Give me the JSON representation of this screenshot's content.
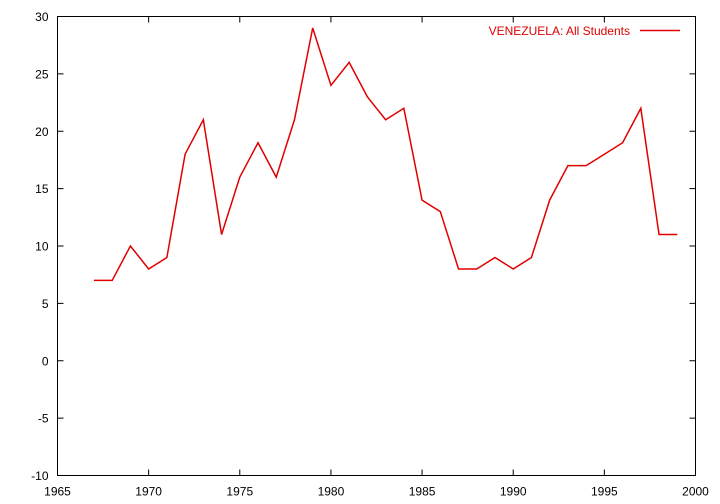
{
  "chart_data": {
    "type": "line",
    "title": "",
    "xlabel": "",
    "ylabel": "",
    "xlim": [
      1965,
      2000
    ],
    "ylim": [
      -10,
      30
    ],
    "x_ticks": [
      1965,
      1970,
      1975,
      1980,
      1985,
      1990,
      1995,
      2000
    ],
    "y_ticks": [
      -10,
      -5,
      0,
      5,
      10,
      15,
      20,
      25,
      30
    ],
    "grid": false,
    "legend_position": "top-right",
    "series": [
      {
        "name": "VENEZUELA: All Students",
        "color": "#e00000",
        "x": [
          1967,
          1968,
          1969,
          1970,
          1971,
          1972,
          1973,
          1974,
          1975,
          1976,
          1977,
          1978,
          1979,
          1980,
          1981,
          1982,
          1983,
          1984,
          1985,
          1986,
          1987,
          1988,
          1989,
          1990,
          1991,
          1992,
          1993,
          1994,
          1995,
          1996,
          1997,
          1998,
          1999
        ],
        "y": [
          7,
          7,
          10,
          8,
          9,
          18,
          21,
          11,
          16,
          19,
          16,
          21,
          29,
          24,
          26,
          23,
          21,
          22,
          14,
          13,
          8,
          8,
          9,
          8,
          9,
          14,
          17,
          17,
          18,
          19,
          22,
          11,
          11
        ]
      }
    ]
  }
}
